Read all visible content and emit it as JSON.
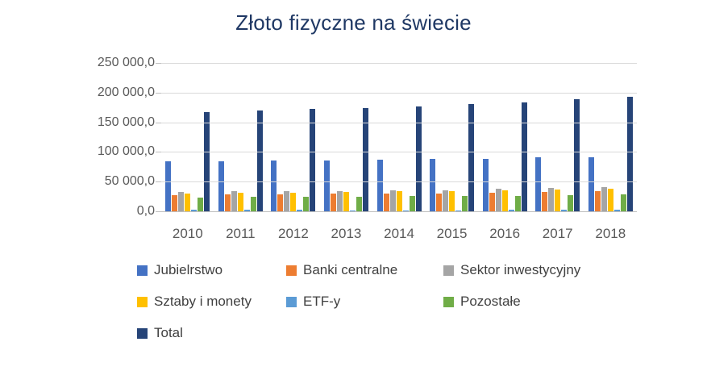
{
  "chart": {
    "title": "Złoto fizyczne na świecie"
  },
  "chart_data": {
    "type": "bar",
    "title": "Złoto fizyczne na świecie",
    "xlabel": "",
    "ylabel": "",
    "units": "tonnes (implied)",
    "categories": [
      "2010",
      "2011",
      "2012",
      "2013",
      "2014",
      "2015",
      "2016",
      "2017",
      "2018"
    ],
    "series": [
      {
        "name": "Jubielrstwo",
        "color": "#4472C4",
        "values": [
          84000,
          84500,
          85000,
          85800,
          86800,
          87800,
          89000,
          90500,
          91700
        ]
      },
      {
        "name": "Banki centralne",
        "color": "#ED7D31",
        "values": [
          27500,
          28100,
          28700,
          29300,
          29900,
          30500,
          31100,
          32500,
          33500
        ]
      },
      {
        "name": "Sektor inwestycyjny",
        "color": "#A5A5A5",
        "values": [
          32500,
          33400,
          34300,
          34400,
          35100,
          35900,
          37400,
          38800,
          40400
        ]
      },
      {
        "name": "Sztaby i monety",
        "color": "#FFC000",
        "values": [
          30200,
          31000,
          31700,
          32500,
          33400,
          34300,
          35200,
          36500,
          38000
        ]
      },
      {
        "name": "ETF-y",
        "color": "#5B9BD5",
        "values": [
          2300,
          2400,
          2600,
          1900,
          1700,
          1600,
          2200,
          2300,
          2400
        ]
      },
      {
        "name": "Pozostałe",
        "color": "#70AD47",
        "values": [
          23500,
          24000,
          24500,
          25000,
          25500,
          26000,
          26500,
          27200,
          27900
        ]
      },
      {
        "name": "Total",
        "color": "#264478",
        "values": [
          167500,
          170000,
          172500,
          174500,
          177300,
          180200,
          184000,
          189000,
          193500
        ]
      }
    ],
    "ylim": [
      0,
      250000
    ],
    "y_ticks": [
      {
        "value": 0,
        "label": "0,0"
      },
      {
        "value": 50000,
        "label": "50 000,0"
      },
      {
        "value": 100000,
        "label": "100 000,0"
      },
      {
        "value": 150000,
        "label": "150 000,0"
      },
      {
        "value": 200000,
        "label": "200 000,0"
      },
      {
        "value": 250000,
        "label": "250 000,0"
      }
    ],
    "grid": true,
    "legend_position": "bottom",
    "legend_items_per_row": 3,
    "colors": {
      "title_text": "#1F3864",
      "axis_text": "#595959",
      "legend_text": "#404040",
      "gridline": "#D9D9D9",
      "axis_line": "#BFBFBF",
      "background": "#FFFFFF"
    }
  }
}
